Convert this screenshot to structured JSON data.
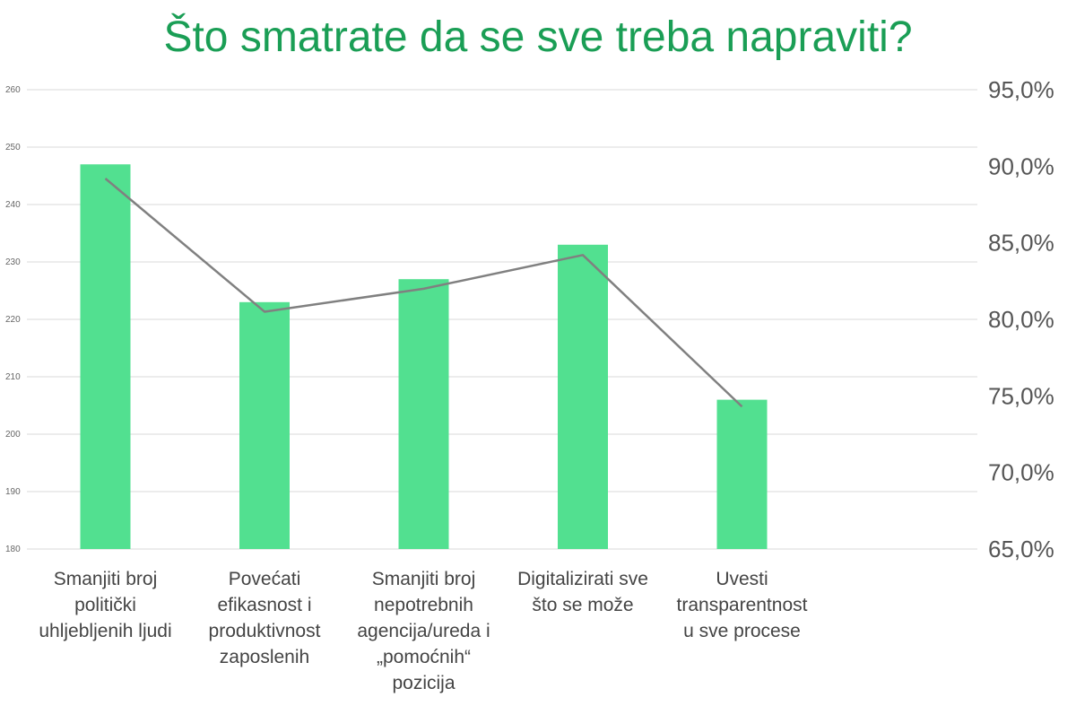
{
  "chart_data": {
    "type": "bar",
    "title": "Što smatrate da se sve treba napraviti?",
    "categories": [
      [
        "Smanjiti broj",
        "politički",
        "uhljebljenih ljudi"
      ],
      [
        "Povećati",
        "efikasnost i",
        "produktivnost",
        "zaposlenih"
      ],
      [
        "Smanjiti broj",
        "nepotrebnih",
        "agencija/ureda i",
        "„pomoćnih“",
        "pozicija"
      ],
      [
        "Digitalizirati sve",
        "što se može"
      ],
      [
        "Uvesti",
        "transparentnost",
        "u sve procese"
      ]
    ],
    "series": [
      {
        "type": "bar",
        "axis": "left",
        "values": [
          247,
          223,
          227,
          233,
          206
        ]
      },
      {
        "type": "line",
        "axis": "right",
        "values": [
          89.2,
          80.5,
          82.0,
          84.2,
          74.3
        ]
      }
    ],
    "y_left": {
      "min": 180,
      "max": 260,
      "ticks": [
        "180",
        "190",
        "200",
        "210",
        "220",
        "230",
        "240",
        "250",
        "260"
      ]
    },
    "y_right": {
      "min": 65.0,
      "max": 95.0,
      "ticks": [
        "65,0%",
        "70,0%",
        "75,0%",
        "80,0%",
        "85,0%",
        "90,0%",
        "95,0%"
      ]
    },
    "grid": true,
    "legend": "none",
    "colors": {
      "bar": "#52e090",
      "line": "#808080",
      "title": "#1a9e55",
      "grid": "#d9d9d9"
    }
  }
}
